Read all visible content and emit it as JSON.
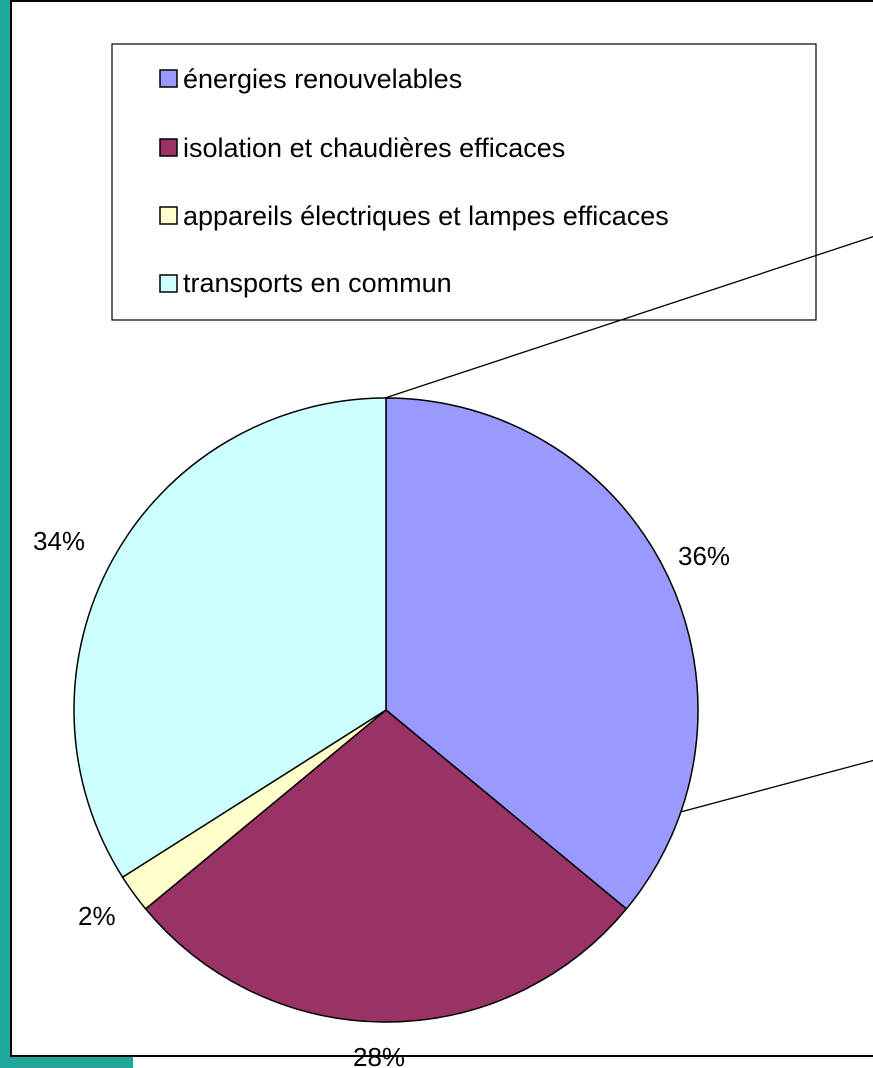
{
  "chart_data": {
    "type": "pie",
    "categories": [
      "énergies renouvelables",
      "isolation et chaudières efficaces",
      "appareils électriques et lampes efficaces",
      "transports en commun"
    ],
    "values": [
      36,
      28,
      2,
      34
    ],
    "value_labels": [
      "36%",
      "28%",
      "2%",
      "34%"
    ],
    "colors": [
      "#9999ff",
      "#993366",
      "#ffffcc",
      "#ccffff"
    ],
    "legend_placement": "top",
    "start_angle_deg": 0,
    "direction": "clockwise"
  }
}
